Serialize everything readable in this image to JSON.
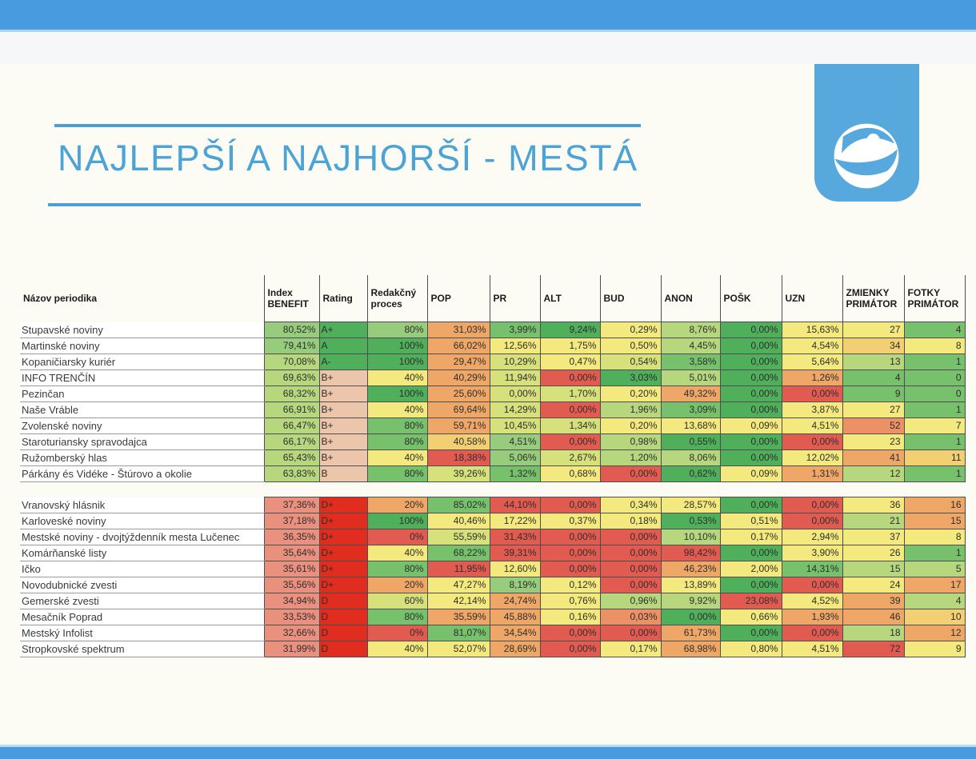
{
  "title": "NAJLEPŠÍ A NAJHORŠÍ - MESTÁ",
  "logo": {
    "icon": "transparency-international-globe"
  },
  "theme": {
    "bar_blue": "#489BDF",
    "strip": "#F5F7F9",
    "cream": "#FCFCF5",
    "title_blue": "#4BA3D6",
    "rule_blue": "#4C9FD3",
    "logo_blue": "#57A8DC"
  },
  "palette": {
    "g1": "#4FAF5B",
    "g2": "#77C06C",
    "g3": "#97CC7C",
    "g4": "#B6D77E",
    "yg": "#D6E17C",
    "y": "#F3E97E",
    "yo": "#F2CF73",
    "o": "#EFA768",
    "so": "#EC9065",
    "r": "#E25B51",
    "R": "#E12D1F",
    "p": "#ECC6AA",
    "sal": "#E9907E"
  },
  "table": {
    "headers": [
      "Názov periodika",
      "Index BENEFIT",
      "Rating",
      "Redakčný proces",
      "POP",
      "PR",
      "ALT",
      "BUD",
      "ANON",
      "POŠK",
      "UZN",
      "ZMIENKY PRIMÁTOR",
      "FOTKY PRIMÁTOR"
    ],
    "best_rows": [
      {
        "name": "Stupavské noviny",
        "values": [
          "80,52%",
          "A+",
          "80%",
          "31,03%",
          "3,99%",
          "9,24%",
          "0,29%",
          "8,76%",
          "0,00%",
          "15,63%",
          "27",
          "4"
        ],
        "colors": [
          "g3",
          "g1",
          "g3",
          "o",
          "g2",
          "g1",
          "y",
          "g4",
          "g1",
          "y",
          "y",
          "g2"
        ]
      },
      {
        "name": "Martinské noviny",
        "values": [
          "79,41%",
          "A",
          "100%",
          "66,02%",
          "12,56%",
          "1,75%",
          "0,50%",
          "4,45%",
          "0,00%",
          "4,54%",
          "34",
          "8"
        ],
        "colors": [
          "g3",
          "g1",
          "g1",
          "o",
          "y",
          "y",
          "y",
          "g4",
          "g1",
          "y",
          "yo",
          "y"
        ]
      },
      {
        "name": "Kopaničiarsky kuriér",
        "values": [
          "70,08%",
          "A-",
          "100%",
          "29,47%",
          "10,29%",
          "0,47%",
          "0,54%",
          "3,58%",
          "0,00%",
          "5,64%",
          "13",
          "1"
        ],
        "colors": [
          "g4",
          "g1",
          "g1",
          "o",
          "yg",
          "y",
          "yg",
          "g2",
          "g1",
          "y",
          "g4",
          "g2"
        ]
      },
      {
        "name": "INFO TRENČÍN",
        "values": [
          "69,63%",
          "B+",
          "40%",
          "40,29%",
          "11,94%",
          "0,00%",
          "3,03%",
          "5,01%",
          "0,00%",
          "1,26%",
          "4",
          "0"
        ],
        "colors": [
          "g4",
          "p",
          "y",
          "o",
          "yg",
          "r",
          "g1",
          "g4",
          "g1",
          "o",
          "g2",
          "g2"
        ]
      },
      {
        "name": "Pezinčan",
        "values": [
          "68,32%",
          "B+",
          "100%",
          "25,60%",
          "0,00%",
          "1,70%",
          "0,20%",
          "49,32%",
          "0,00%",
          "0,00%",
          "9",
          "0"
        ],
        "colors": [
          "g4",
          "p",
          "g1",
          "o",
          "yg",
          "yg",
          "y",
          "o",
          "g1",
          "r",
          "g2",
          "g2"
        ]
      },
      {
        "name": "Naše Vráble",
        "values": [
          "66,91%",
          "B+",
          "40%",
          "69,64%",
          "14,29%",
          "0,00%",
          "1,96%",
          "3,09%",
          "0,00%",
          "3,87%",
          "27",
          "1"
        ],
        "colors": [
          "g4",
          "p",
          "y",
          "o",
          "yg",
          "r",
          "g4",
          "g2",
          "g1",
          "y",
          "y",
          "g2"
        ]
      },
      {
        "name": "Zvolenské noviny",
        "values": [
          "66,47%",
          "B+",
          "80%",
          "59,71%",
          "10,45%",
          "1,34%",
          "0,20%",
          "13,68%",
          "0,09%",
          "4,51%",
          "52",
          "7"
        ],
        "colors": [
          "g4",
          "p",
          "g2",
          "o",
          "yg",
          "yg",
          "y",
          "y",
          "y",
          "y",
          "so",
          "y"
        ]
      },
      {
        "name": "Staroturiansky spravodajca",
        "values": [
          "66,17%",
          "B+",
          "80%",
          "40,58%",
          "4,51%",
          "0,00%",
          "0,98%",
          "0,55%",
          "0,00%",
          "0,00%",
          "23",
          "1"
        ],
        "colors": [
          "g4",
          "p",
          "g2",
          "yo",
          "g3",
          "r",
          "g4",
          "g1",
          "g1",
          "r",
          "y",
          "g2"
        ]
      },
      {
        "name": "Ružomberský hlas",
        "values": [
          "65,43%",
          "B+",
          "40%",
          "18,38%",
          "5,06%",
          "2,67%",
          "1,20%",
          "8,06%",
          "0,00%",
          "12,02%",
          "41",
          "11"
        ],
        "colors": [
          "g4",
          "p",
          "y",
          "r",
          "g3",
          "yg",
          "g4",
          "g4",
          "g1",
          "y",
          "o",
          "yo"
        ]
      },
      {
        "name": "Párkány és Vidéke - Štúrovo a okolie",
        "values": [
          "63,83%",
          "B",
          "80%",
          "39,26%",
          "1,32%",
          "0,68%",
          "0,00%",
          "0,62%",
          "0,09%",
          "1,31%",
          "12",
          "1"
        ],
        "colors": [
          "g4",
          "p",
          "g2",
          "yg",
          "g2",
          "y",
          "r",
          "g1",
          "y",
          "o",
          "g4",
          "g2"
        ]
      }
    ],
    "worst_rows": [
      {
        "name": "Vranovský hlásnik",
        "values": [
          "37,36%",
          "D+",
          "20%",
          "85,02%",
          "44,10%",
          "0,00%",
          "0,34%",
          "28,57%",
          "0,00%",
          "0,00%",
          "36",
          "16"
        ],
        "colors": [
          "sal",
          "R",
          "o",
          "g2",
          "r",
          "r",
          "y",
          "y",
          "g1",
          "r",
          "y",
          "o"
        ]
      },
      {
        "name": "Karloveské noviny",
        "values": [
          "37,18%",
          "D+",
          "100%",
          "40,46%",
          "17,22%",
          "0,37%",
          "0,18%",
          "0,53%",
          "0,51%",
          "0,00%",
          "21",
          "15"
        ],
        "colors": [
          "sal",
          "R",
          "g1",
          "y",
          "y",
          "y",
          "y",
          "g1",
          "y",
          "r",
          "g4",
          "o"
        ]
      },
      {
        "name": "Mestské noviny - dvojtýždenník mesta Lučenec",
        "values": [
          "36,35%",
          "D+",
          "0%",
          "55,59%",
          "31,43%",
          "0,00%",
          "0,00%",
          "10,10%",
          "0,17%",
          "2,94%",
          "37",
          "8"
        ],
        "colors": [
          "sal",
          "R",
          "r",
          "yg",
          "r",
          "r",
          "r",
          "g4",
          "y",
          "y",
          "y",
          "y"
        ]
      },
      {
        "name": "Komárňanské listy",
        "values": [
          "35,64%",
          "D+",
          "40%",
          "68,22%",
          "39,31%",
          "0,00%",
          "0,00%",
          "98,42%",
          "0,00%",
          "3,90%",
          "26",
          "1"
        ],
        "colors": [
          "sal",
          "R",
          "y",
          "g2",
          "r",
          "r",
          "r",
          "r",
          "g1",
          "y",
          "y",
          "g2"
        ]
      },
      {
        "name": "Ičko",
        "values": [
          "35,61%",
          "D+",
          "80%",
          "11,95%",
          "12,60%",
          "0,00%",
          "0,00%",
          "46,23%",
          "2,00%",
          "14,31%",
          "15",
          "5"
        ],
        "colors": [
          "sal",
          "R",
          "g2",
          "r",
          "y",
          "r",
          "r",
          "o",
          "y",
          "g2",
          "g4",
          "g4"
        ]
      },
      {
        "name": "Novodubnické zvesti",
        "values": [
          "35,56%",
          "D+",
          "20%",
          "47,27%",
          "8,19%",
          "0,12%",
          "0,00%",
          "13,89%",
          "0,00%",
          "0,00%",
          "24",
          "17"
        ],
        "colors": [
          "sal",
          "R",
          "o",
          "y",
          "g3",
          "y",
          "r",
          "y",
          "g1",
          "r",
          "y",
          "o"
        ]
      },
      {
        "name": "Gemerské zvesti",
        "values": [
          "34,94%",
          "D",
          "60%",
          "42,14%",
          "24,74%",
          "0,76%",
          "0,96%",
          "9,92%",
          "23,08%",
          "4,52%",
          "39",
          "4"
        ],
        "colors": [
          "sal",
          "R",
          "yg",
          "y",
          "o",
          "y",
          "g4",
          "g4",
          "r",
          "y",
          "o",
          "g4"
        ]
      },
      {
        "name": "Mesačník Poprad",
        "values": [
          "33,53%",
          "D",
          "80%",
          "35,59%",
          "45,88%",
          "0,16%",
          "0,03%",
          "0,00%",
          "0,66%",
          "1,93%",
          "46",
          "10"
        ],
        "colors": [
          "sal",
          "R",
          "g2",
          "o",
          "o",
          "y",
          "so",
          "g1",
          "y",
          "o",
          "o",
          "yo"
        ]
      },
      {
        "name": "Mestský Infolist",
        "values": [
          "32,66%",
          "D",
          "0%",
          "81,07%",
          "34,54%",
          "0,00%",
          "0,00%",
          "61,73%",
          "0,00%",
          "0,00%",
          "18",
          "12"
        ],
        "colors": [
          "sal",
          "R",
          "r",
          "g2",
          "o",
          "r",
          "r",
          "o",
          "g1",
          "r",
          "g4",
          "o"
        ]
      },
      {
        "name": "Stropkovské spektrum",
        "values": [
          "31,99%",
          "D",
          "40%",
          "52,07%",
          "28,69%",
          "0,00%",
          "0,17%",
          "68,98%",
          "0,80%",
          "4,51%",
          "72",
          "9"
        ],
        "colors": [
          "sal",
          "R",
          "y",
          "y",
          "o",
          "r",
          "y",
          "o",
          "y",
          "y",
          "r",
          "y"
        ]
      }
    ]
  }
}
